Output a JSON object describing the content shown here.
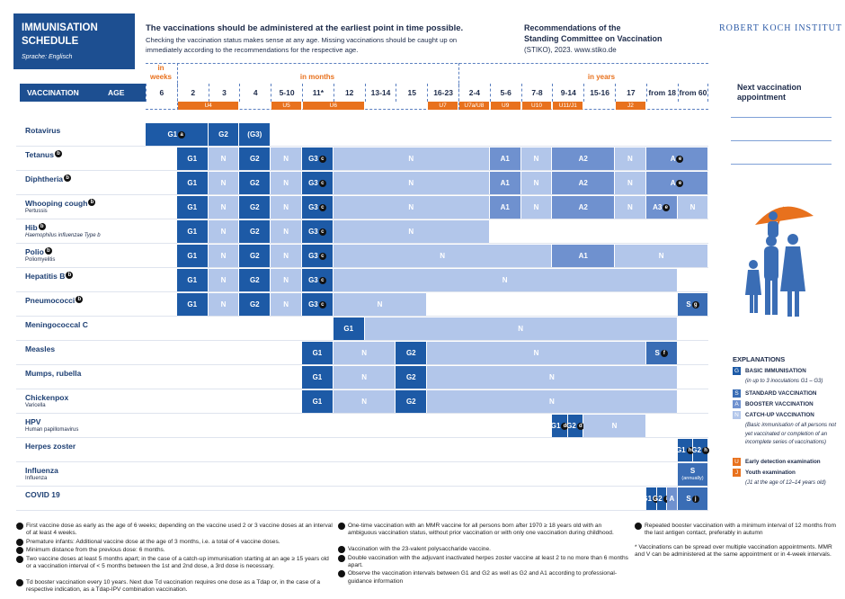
{
  "header": {
    "title": "IMMUNISATION SCHEDULE",
    "language": "Sprache: Englisch",
    "headline": "The vaccinations should be administered at the earliest point in time possible.",
    "text": "Checking the vaccination status makes sense at any age. Missing vaccinations should be caught up on immediately according to the recommendations for the respective age.",
    "recommendations_line1": "Recommendations of the",
    "recommendations_line2": "Standing Committee on Vaccination",
    "recommendations_line3": "(STIKO), 2023. www.stiko.de",
    "institute": "ROBERT KOCH INSTITUT"
  },
  "column_heads": {
    "vaccination": "VACCINATION",
    "age": "AGE",
    "weeks": "in weeks",
    "months": "in months",
    "years": "in years"
  },
  "ages": [
    "6",
    "2",
    "3",
    "4",
    "5-10",
    "11*",
    "12",
    "13-14",
    "15",
    "16-23",
    "2-4",
    "5-6",
    "7-8",
    "9-14",
    "15-16",
    "17",
    "from 18",
    "from 60"
  ],
  "exams": [
    "U4",
    "U5",
    "U6",
    "U7",
    "U7a/U8",
    "U9",
    "U10",
    "U11/J1",
    "J2"
  ],
  "next_appointment": "Next vaccination appointment",
  "rows": [
    {
      "name": "Rotavirus",
      "cells": [
        {
          "text": "G1",
          "sup": "a"
        },
        {
          "text": "G2"
        },
        {
          "text": "(G3)"
        }
      ]
    },
    {
      "name": "Tetanus",
      "note": "b",
      "cells": [
        {
          "text": "G1"
        },
        {
          "text": "N"
        },
        {
          "text": "G2"
        },
        {
          "text": "N"
        },
        {
          "text": "G3",
          "sup": "c"
        },
        {
          "text": "N"
        },
        {
          "text": "A1"
        },
        {
          "text": "N"
        },
        {
          "text": "A2"
        },
        {
          "text": "N"
        },
        {
          "text": "A",
          "sup": "e"
        }
      ]
    },
    {
      "name": "Diphtheria",
      "note": "b",
      "cells": [
        {
          "text": "G1"
        },
        {
          "text": "N"
        },
        {
          "text": "G2"
        },
        {
          "text": "N"
        },
        {
          "text": "G3",
          "sup": "c"
        },
        {
          "text": "N"
        },
        {
          "text": "A1"
        },
        {
          "text": "N"
        },
        {
          "text": "A2"
        },
        {
          "text": "N"
        },
        {
          "text": "A",
          "sup": "e"
        }
      ]
    },
    {
      "name": "Whooping cough",
      "note": "b",
      "sub": "Pertussis",
      "cells": [
        {
          "text": "G1"
        },
        {
          "text": "N"
        },
        {
          "text": "G2"
        },
        {
          "text": "N"
        },
        {
          "text": "G3",
          "sup": "c"
        },
        {
          "text": "N"
        },
        {
          "text": "A1"
        },
        {
          "text": "N"
        },
        {
          "text": "A2"
        },
        {
          "text": "N"
        },
        {
          "text": "A3",
          "sup": "e"
        },
        {
          "text": "N"
        }
      ]
    },
    {
      "name": "Hib",
      "note": "b",
      "sub": "Haemophilus influenzae Type b",
      "cells": [
        {
          "text": "G1"
        },
        {
          "text": "N"
        },
        {
          "text": "G2"
        },
        {
          "text": "N"
        },
        {
          "text": "G3",
          "sup": "c"
        },
        {
          "text": "N"
        }
      ]
    },
    {
      "name": "Polio",
      "note": "b",
      "sub": "Poliomyelitis",
      "cells": [
        {
          "text": "G1"
        },
        {
          "text": "N"
        },
        {
          "text": "G2"
        },
        {
          "text": "N"
        },
        {
          "text": "G3",
          "sup": "c"
        },
        {
          "text": "N"
        },
        {
          "text": "A1"
        },
        {
          "text": "N"
        }
      ]
    },
    {
      "name": "Hepatitis B",
      "note": "b",
      "cells": [
        {
          "text": "G1"
        },
        {
          "text": "N"
        },
        {
          "text": "G2"
        },
        {
          "text": "N"
        },
        {
          "text": "G3",
          "sup": "c"
        },
        {
          "text": "N"
        }
      ]
    },
    {
      "name": "Pneumococci",
      "note": "b",
      "cells": [
        {
          "text": "G1"
        },
        {
          "text": "N"
        },
        {
          "text": "G2"
        },
        {
          "text": "N"
        },
        {
          "text": "G3",
          "sup": "c"
        },
        {
          "text": "N"
        },
        {
          "text": "S",
          "sup": "g"
        }
      ]
    },
    {
      "name": "Meningococcal C",
      "cells": [
        {
          "text": "G1"
        },
        {
          "text": "N"
        }
      ]
    },
    {
      "name": "Measles",
      "cells": [
        {
          "text": "G1"
        },
        {
          "text": "N"
        },
        {
          "text": "G2"
        },
        {
          "text": "N"
        },
        {
          "text": "S",
          "sup": "f"
        }
      ]
    },
    {
      "name": "Mumps, rubella",
      "cells": [
        {
          "text": "G1"
        },
        {
          "text": "N"
        },
        {
          "text": "G2"
        },
        {
          "text": "N"
        }
      ]
    },
    {
      "name": "Chickenpox",
      "sub": "Varicella",
      "cells": [
        {
          "text": "G1"
        },
        {
          "text": "N"
        },
        {
          "text": "G2"
        },
        {
          "text": "N"
        }
      ]
    },
    {
      "name": "HPV",
      "sub": "Human papillomavirus",
      "cells": [
        {
          "text": "G1",
          "sup": "d"
        },
        {
          "text": "G2",
          "sup": "d"
        },
        {
          "text": "N"
        }
      ]
    },
    {
      "name": "Herpes zoster",
      "cells": [
        {
          "text": "G1",
          "sup": "h"
        },
        {
          "text": "G2",
          "sup": "h"
        }
      ]
    },
    {
      "name": "Influenza",
      "sub": "Influenza",
      "cells": [
        {
          "text": "S",
          "note": "(annually)"
        }
      ]
    },
    {
      "name": "COVID 19",
      "cells": [
        {
          "text": "G1",
          "sup": "i"
        },
        {
          "text": "G2",
          "sup": "i"
        },
        {
          "text": "A"
        },
        {
          "text": "S",
          "sup": "j"
        }
      ]
    }
  ],
  "explanations": {
    "title": "EXPLANATIONS",
    "items": [
      {
        "symbol": "G",
        "label": "BASIC IMMUNISATION",
        "desc": "(in up to 3 inoculations G1 – G3)"
      },
      {
        "symbol": "S",
        "label": "STANDARD VACCINATION"
      },
      {
        "symbol": "A",
        "label": "BOOSTER VACCINATION"
      },
      {
        "symbol": "N",
        "label": "CATCH-UP VACCINATION",
        "desc": "(Basic immunisation of all persons not yet vaccinated or completion of an incomplete series of vaccinations)"
      },
      {
        "symbol": "U",
        "label": "Early detection examination"
      },
      {
        "symbol": "J",
        "label": "Youth examination",
        "desc": "(J1 at the age of 12–14 years old)"
      }
    ]
  },
  "footnotes": [
    {
      "letter": "a",
      "text": "First vaccine dose as early as the age of 6 weeks; depending on the vaccine used 2 or 3 vaccine doses at an interval of at least 4 weeks."
    },
    {
      "letter": "b",
      "text": "Premature infants: Additional vaccine dose at the age of 3 months, i.e. a total of 4 vaccine doses."
    },
    {
      "letter": "c",
      "text": "Minimum distance from the previous dose: 6 months."
    },
    {
      "letter": "d",
      "text": "Two vaccine doses at least 5 months apart; in the case of a catch-up immunisation starting at an age ≥ 15 years old or a vaccination interval of < 5 months between the 1st and 2nd dose, a 3rd dose is necessary."
    },
    {
      "letter": "e",
      "text": "Td booster vaccination every 10 years. Next due Td vaccination requires one dose as a Tdap or, in the case of a respective indication, as a Tdap-IPV combination vaccination."
    },
    {
      "letter": "f",
      "text": "One-time vaccination with an MMR vaccine for all persons born after 1970 ≥ 18 years old with an ambiguous vaccination status, without prior vaccination or with only one vaccination during childhood."
    },
    {
      "letter": "g",
      "text": "Vaccination with the 23-valent polysaccharide vaccine."
    },
    {
      "letter": "h",
      "text": "Double vaccination with the adjuvant inactivated herpes zoster vaccine at least 2 to no more than 6 months apart."
    },
    {
      "letter": "i",
      "text": "Observe the vaccination intervals between G1 and G2 as well as G2 and A1 according to professional-guidance information"
    },
    {
      "letter": "j",
      "text": "Repeated booster vaccination with a minimum interval of 12 months from the last antigen contact, preferably in autumn"
    }
  ],
  "star_note": "* Vaccinations can be spread over multiple vaccination appointments. MMR and V can be administered at the same appointment or in 4-week intervals."
}
